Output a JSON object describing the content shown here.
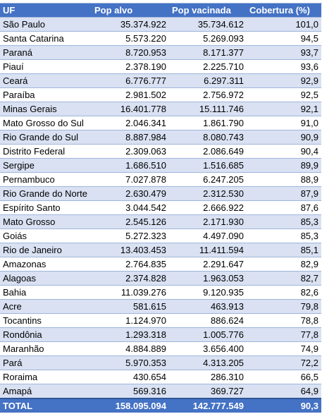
{
  "table": {
    "headers": [
      "UF",
      "Pop alvo",
      "Pop vacinada",
      "Cobertura (%)"
    ],
    "rows": [
      [
        "São Paulo",
        "35.374.922",
        "35.734.612",
        "101,0"
      ],
      [
        "Santa Catarina",
        "5.573.220",
        "5.269.093",
        "94,5"
      ],
      [
        "Paraná",
        "8.720.953",
        "8.171.377",
        "93,7"
      ],
      [
        "Piauí",
        "2.378.190",
        "2.225.710",
        "93,6"
      ],
      [
        "Ceará",
        "6.776.777",
        "6.297.311",
        "92,9"
      ],
      [
        "Paraíba",
        "2.981.502",
        "2.756.972",
        "92,5"
      ],
      [
        "Minas Gerais",
        "16.401.778",
        "15.111.746",
        "92,1"
      ],
      [
        "Mato Grosso do Sul",
        "2.046.341",
        "1.861.790",
        "91,0"
      ],
      [
        "Rio Grande do Sul",
        "8.887.984",
        "8.080.743",
        "90,9"
      ],
      [
        "Distrito Federal",
        "2.309.063",
        "2.086.649",
        "90,4"
      ],
      [
        "Sergipe",
        "1.686.510",
        "1.516.685",
        "89,9"
      ],
      [
        "Pernambuco",
        "7.027.878",
        "6.247.205",
        "88,9"
      ],
      [
        "Rio Grande do Norte",
        "2.630.479",
        "2.312.530",
        "87,9"
      ],
      [
        "Espírito Santo",
        "3.044.542",
        "2.666.922",
        "87,6"
      ],
      [
        "Mato Grosso",
        "2.545.126",
        "2.171.930",
        "85,3"
      ],
      [
        "Goiás",
        "5.272.323",
        "4.497.090",
        "85,3"
      ],
      [
        "Rio de Janeiro",
        "13.403.453",
        "11.411.594",
        "85,1"
      ],
      [
        "Amazonas",
        "2.764.835",
        "2.291.647",
        "82,9"
      ],
      [
        "Alagoas",
        "2.374.828",
        "1.963.053",
        "82,7"
      ],
      [
        "Bahia",
        "11.039.276",
        "9.120.935",
        "82,6"
      ],
      [
        "Acre",
        "581.615",
        "463.913",
        "79,8"
      ],
      [
        "Tocantins",
        "1.124.970",
        "886.624",
        "78,8"
      ],
      [
        "Rondônia",
        "1.293.318",
        "1.005.776",
        "77,8"
      ],
      [
        "Maranhão",
        "4.884.889",
        "3.656.400",
        "74,9"
      ],
      [
        "Pará",
        "5.970.353",
        "4.313.205",
        "72,2"
      ],
      [
        "Roraima",
        "430.654",
        "286.310",
        "66,5"
      ],
      [
        "Amapá",
        "569.316",
        "369.727",
        "64,9"
      ]
    ],
    "total": [
      "TOTAL",
      "158.095.094",
      "142.777.549",
      "90,3"
    ]
  },
  "colors": {
    "header_bg": "#4472c4",
    "band_bg": "#d9e1f2",
    "grid": "#9fb5dc"
  }
}
